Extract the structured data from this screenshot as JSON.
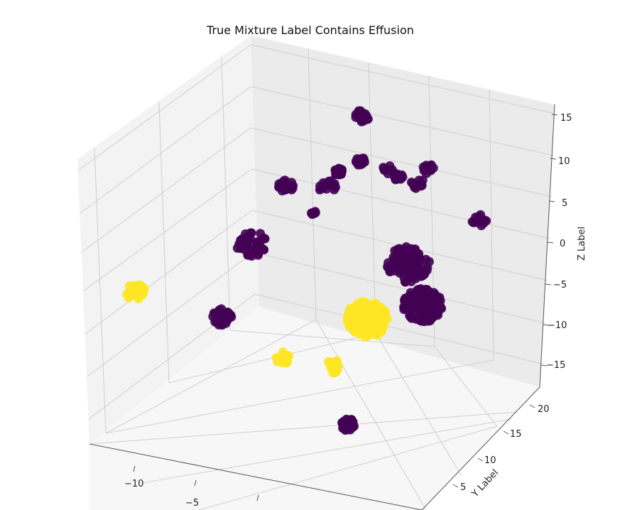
{
  "chart_data": {
    "type": "scatter",
    "title": "True Mixture Label Contains Effusion",
    "xlabel": "",
    "ylabel": "Y Label",
    "zlabel": "Z Label",
    "x_ticks": [
      "−10",
      "−5"
    ],
    "y_ticks": [
      "5",
      "10",
      "15",
      "20"
    ],
    "z_ticks": [
      "15",
      "10",
      "5",
      "0",
      "−5",
      "−10",
      "−15"
    ],
    "ylim": [
      2,
      22
    ],
    "zlim": [
      -17,
      16
    ],
    "grid": true,
    "colors": {
      "false": "#440154",
      "true": "#fde725"
    },
    "clusters": [
      {
        "label": 0,
        "count": 40
      },
      {
        "label": 0,
        "count": 20
      },
      {
        "label": 0,
        "count": 25
      },
      {
        "label": 0,
        "count": 15
      },
      {
        "label": 0,
        "count": 18
      },
      {
        "label": 0,
        "count": 30
      },
      {
        "label": 0,
        "count": 6
      },
      {
        "label": 0,
        "count": 10
      },
      {
        "label": 0,
        "count": 15
      },
      {
        "label": 0,
        "count": 15
      },
      {
        "label": 0,
        "count": 15
      },
      {
        "label": 0,
        "count": 40
      },
      {
        "label": 0,
        "count": 40
      },
      {
        "label": 0,
        "count": 100
      },
      {
        "label": 0,
        "count": 160
      },
      {
        "label": 0,
        "count": 15
      },
      {
        "label": 1,
        "count": 40
      },
      {
        "label": 1,
        "count": 160
      },
      {
        "label": 1,
        "count": 15
      },
      {
        "label": 1,
        "count": 20
      }
    ]
  }
}
